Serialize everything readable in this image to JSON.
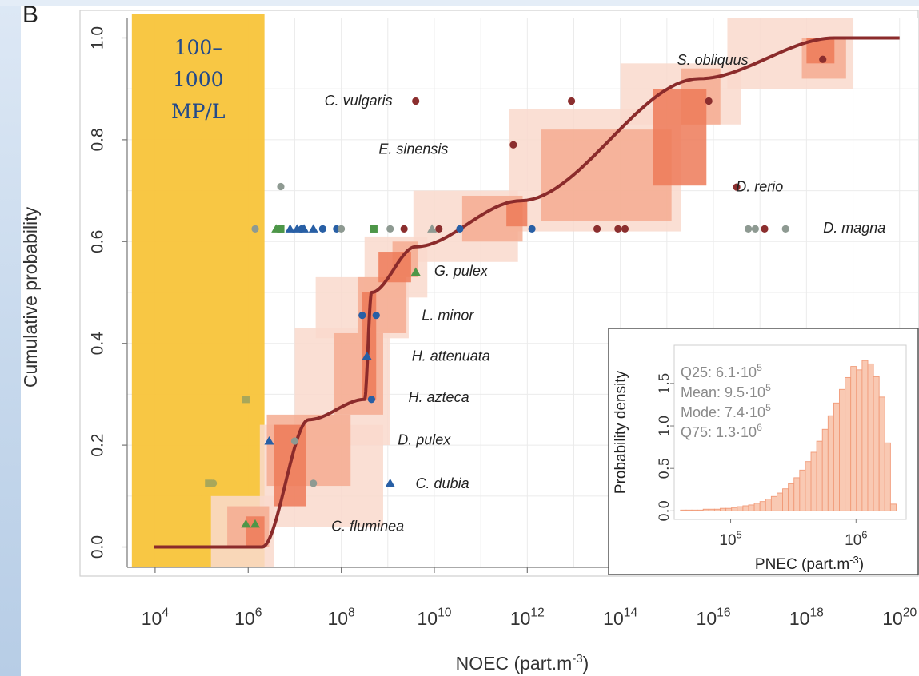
{
  "panel_label": "B",
  "chart_data": {
    "type": "scatter",
    "xlabel": "NOEC (part.m",
    "xlabel_sup": "-3",
    "xlabel_end": ")",
    "ylabel": "Cumulative probability",
    "xscale": "log10",
    "xlim_log10": [
      3.4,
      20.4
    ],
    "ylim": [
      -0.04,
      1.04
    ],
    "x_ticks_log10": [
      4,
      6,
      8,
      10,
      12,
      14,
      16,
      18,
      20
    ],
    "x_tick_labels": [
      "4",
      "6",
      "8",
      "10",
      "12",
      "14",
      "16",
      "18",
      "20"
    ],
    "y_ticks": [
      0.0,
      0.2,
      0.4,
      0.6,
      0.8,
      1.0
    ],
    "y_tick_labels": [
      "0.0",
      "0.2",
      "0.4",
      "0.6",
      "0.8",
      "1.0"
    ],
    "grid": true,
    "highlight_band": {
      "label_lines": [
        "100–",
        "1000",
        "MP/L"
      ],
      "x_range_log10": [
        3.5,
        6.35
      ],
      "color": "#f8c43a"
    },
    "ssd_curve": {
      "color": "#8b2b2b",
      "steps": [
        {
          "x0": 3.98,
          "x1": 6.3,
          "y0": 0.0,
          "y1": 0.0
        },
        {
          "x0": 6.3,
          "x1": 7.3,
          "y0": 0.0,
          "y1": 0.25
        },
        {
          "x0": 7.3,
          "x1": 8.5,
          "y0": 0.25,
          "y1": 0.29
        },
        {
          "x0": 8.5,
          "x1": 8.65,
          "y0": 0.29,
          "y1": 0.5
        },
        {
          "x0": 8.65,
          "x1": 9.6,
          "y0": 0.5,
          "y1": 0.59
        },
        {
          "x0": 9.6,
          "x1": 11.85,
          "y0": 0.59,
          "y1": 0.68
        },
        {
          "x0": 11.85,
          "x1": 15.7,
          "y0": 0.68,
          "y1": 0.92
        },
        {
          "x0": 15.7,
          "x1": 18.6,
          "y0": 0.92,
          "y1": 1.0
        },
        {
          "x0": 18.6,
          "x1": 20.0,
          "y0": 1.0,
          "y1": 1.0
        }
      ]
    },
    "confidence_bands": [
      {
        "level": "outer",
        "color": "#f9d9cd",
        "boxes": [
          [
            5.2,
            6.55,
            -0.04,
            0.1
          ],
          [
            6.25,
            8.9,
            0.04,
            0.24
          ],
          [
            7.0,
            9.05,
            0.2,
            0.43
          ],
          [
            7.45,
            9.45,
            0.41,
            0.53
          ],
          [
            8.5,
            9.85,
            0.49,
            0.61
          ],
          [
            9.55,
            11.8,
            0.56,
            0.7
          ],
          [
            11.6,
            15.3,
            0.62,
            0.86
          ],
          [
            14.0,
            16.6,
            0.83,
            0.95
          ],
          [
            16.3,
            19.0,
            0.9,
            1.04
          ]
        ]
      },
      {
        "level": "middle",
        "color": "#f4ab90",
        "boxes": [
          [
            5.55,
            6.45,
            0.0,
            0.08
          ],
          [
            6.4,
            8.2,
            0.12,
            0.26
          ],
          [
            7.85,
            8.9,
            0.26,
            0.42
          ],
          [
            8.35,
            9.4,
            0.42,
            0.53
          ],
          [
            9.1,
            9.65,
            0.53,
            0.6
          ],
          [
            10.6,
            11.9,
            0.6,
            0.69
          ],
          [
            12.3,
            15.1,
            0.64,
            0.82
          ],
          [
            15.3,
            16.15,
            0.83,
            0.94
          ],
          [
            17.9,
            18.85,
            0.92,
            1.0
          ]
        ]
      },
      {
        "level": "inner",
        "color": "#ed7a58",
        "boxes": [
          [
            5.95,
            6.35,
            0.0,
            0.06
          ],
          [
            6.55,
            7.25,
            0.08,
            0.24
          ],
          [
            8.45,
            8.75,
            0.29,
            0.5
          ],
          [
            8.8,
            9.5,
            0.52,
            0.58
          ],
          [
            11.55,
            12.0,
            0.63,
            0.68
          ],
          [
            14.7,
            15.85,
            0.71,
            0.9
          ],
          [
            18.0,
            18.6,
            0.95,
            1.0
          ]
        ]
      }
    ],
    "species_labels": [
      {
        "text": "S. obliquus",
        "x": 16.75,
        "y": 0.957
      },
      {
        "text": "C. vulgaris",
        "x": 9.1,
        "y": 0.877
      },
      {
        "text": "E. sinensis",
        "x": 10.3,
        "y": 0.782
      },
      {
        "text": "D. rerio",
        "x": 17.5,
        "y": 0.708
      },
      {
        "text": "D. magna",
        "x": 19.7,
        "y": 0.627
      },
      {
        "text": "G. pulex",
        "x": 11.15,
        "y": 0.542
      },
      {
        "text": "L. minor",
        "x": 10.85,
        "y": 0.455
      },
      {
        "text": "H. attenuata",
        "x": 11.2,
        "y": 0.375
      },
      {
        "text": "H. azteca",
        "x": 10.75,
        "y": 0.294
      },
      {
        "text": "D. pulex",
        "x": 10.35,
        "y": 0.21
      },
      {
        "text": "C. dubia",
        "x": 10.75,
        "y": 0.125
      },
      {
        "text": "C. fluminea",
        "x": 9.35,
        "y": 0.041
      }
    ],
    "marker_colors": {
      "darkred": "#8b2e2e",
      "grey": "#8e9a92",
      "blue": "#285fa5",
      "green": "#4d9648",
      "olive": "#a9a75a"
    },
    "points": [
      {
        "x": 9.6,
        "y": 0.876,
        "shape": "circle",
        "color": "darkred"
      },
      {
        "x": 12.95,
        "y": 0.876,
        "shape": "circle",
        "color": "darkred"
      },
      {
        "x": 11.7,
        "y": 0.79,
        "shape": "circle",
        "color": "darkred"
      },
      {
        "x": 15.9,
        "y": 0.876,
        "shape": "circle",
        "color": "darkred"
      },
      {
        "x": 16.5,
        "y": 0.707,
        "shape": "circle",
        "color": "darkred"
      },
      {
        "x": 18.35,
        "y": 0.958,
        "shape": "circle",
        "color": "darkred"
      },
      {
        "x": 6.7,
        "y": 0.708,
        "shape": "circle",
        "color": "grey"
      },
      {
        "x": 6.15,
        "y": 0.625,
        "shape": "circle",
        "color": "grey"
      },
      {
        "x": 6.7,
        "y": 0.625,
        "shape": "square",
        "color": "green"
      },
      {
        "x": 6.6,
        "y": 0.625,
        "shape": "triangle",
        "color": "green"
      },
      {
        "x": 6.9,
        "y": 0.625,
        "shape": "triangle",
        "color": "blue"
      },
      {
        "x": 7.05,
        "y": 0.625,
        "shape": "triangle",
        "color": "blue"
      },
      {
        "x": 7.2,
        "y": 0.625,
        "shape": "triangle",
        "color": "blue"
      },
      {
        "x": 7.4,
        "y": 0.625,
        "shape": "triangle",
        "color": "blue"
      },
      {
        "x": 7.15,
        "y": 0.625,
        "shape": "circle",
        "color": "blue"
      },
      {
        "x": 7.6,
        "y": 0.625,
        "shape": "circle",
        "color": "blue"
      },
      {
        "x": 7.9,
        "y": 0.625,
        "shape": "circle",
        "color": "blue"
      },
      {
        "x": 8.0,
        "y": 0.625,
        "shape": "circle",
        "color": "grey"
      },
      {
        "x": 8.7,
        "y": 0.625,
        "shape": "square",
        "color": "green"
      },
      {
        "x": 9.05,
        "y": 0.625,
        "shape": "circle",
        "color": "grey"
      },
      {
        "x": 9.35,
        "y": 0.625,
        "shape": "circle",
        "color": "darkred"
      },
      {
        "x": 9.95,
        "y": 0.625,
        "shape": "triangle",
        "color": "grey"
      },
      {
        "x": 10.1,
        "y": 0.625,
        "shape": "circle",
        "color": "darkred"
      },
      {
        "x": 10.55,
        "y": 0.625,
        "shape": "circle",
        "color": "blue"
      },
      {
        "x": 12.1,
        "y": 0.625,
        "shape": "circle",
        "color": "blue"
      },
      {
        "x": 13.5,
        "y": 0.625,
        "shape": "circle",
        "color": "darkred"
      },
      {
        "x": 13.95,
        "y": 0.625,
        "shape": "circle",
        "color": "darkred"
      },
      {
        "x": 14.1,
        "y": 0.625,
        "shape": "circle",
        "color": "darkred"
      },
      {
        "x": 16.75,
        "y": 0.625,
        "shape": "circle",
        "color": "grey"
      },
      {
        "x": 16.9,
        "y": 0.625,
        "shape": "circle",
        "color": "grey"
      },
      {
        "x": 17.1,
        "y": 0.625,
        "shape": "circle",
        "color": "darkred"
      },
      {
        "x": 17.55,
        "y": 0.625,
        "shape": "circle",
        "color": "grey"
      },
      {
        "x": 9.6,
        "y": 0.54,
        "shape": "triangle",
        "color": "green"
      },
      {
        "x": 8.45,
        "y": 0.455,
        "shape": "circle",
        "color": "blue"
      },
      {
        "x": 8.75,
        "y": 0.455,
        "shape": "circle",
        "color": "blue"
      },
      {
        "x": 8.55,
        "y": 0.375,
        "shape": "triangle",
        "color": "blue"
      },
      {
        "x": 8.65,
        "y": 0.29,
        "shape": "circle",
        "color": "blue"
      },
      {
        "x": 5.95,
        "y": 0.29,
        "shape": "square",
        "color": "olive"
      },
      {
        "x": 6.45,
        "y": 0.208,
        "shape": "triangle",
        "color": "blue"
      },
      {
        "x": 7.0,
        "y": 0.208,
        "shape": "circle",
        "color": "grey"
      },
      {
        "x": 9.05,
        "y": 0.125,
        "shape": "triangle",
        "color": "blue"
      },
      {
        "x": 7.4,
        "y": 0.125,
        "shape": "circle",
        "color": "grey"
      },
      {
        "x": 5.15,
        "y": 0.125,
        "shape": "square",
        "color": "olive"
      },
      {
        "x": 5.25,
        "y": 0.125,
        "shape": "circle",
        "color": "olive"
      },
      {
        "x": 5.95,
        "y": 0.045,
        "shape": "triangle",
        "color": "green"
      },
      {
        "x": 6.15,
        "y": 0.045,
        "shape": "triangle",
        "color": "green"
      }
    ],
    "inset": {
      "type": "bar",
      "xlabel": "PNEC (part.m",
      "xlabel_sup": "-3",
      "xlabel_end": ")",
      "ylabel": "Probability density",
      "xscale": "log10",
      "xlim_log10": [
        4.55,
        6.4
      ],
      "ylim": [
        -0.1,
        1.95
      ],
      "x_ticks_log10": [
        5,
        6
      ],
      "x_tick_labels": [
        "5",
        "6"
      ],
      "y_ticks": [
        0.0,
        0.5,
        1.0,
        1.5
      ],
      "y_tick_labels": [
        "0.0",
        "0.5",
        "1.0",
        "1.5"
      ],
      "bar_color": "#f9c9b3",
      "bar_edge": "#f19a78",
      "bin_edges_log10": [
        4.6,
        6.32
      ],
      "values": [
        0.01,
        0.01,
        0.01,
        0.01,
        0.02,
        0.02,
        0.02,
        0.03,
        0.03,
        0.04,
        0.05,
        0.06,
        0.07,
        0.09,
        0.11,
        0.14,
        0.17,
        0.21,
        0.26,
        0.32,
        0.39,
        0.48,
        0.58,
        0.69,
        0.82,
        0.96,
        1.12,
        1.27,
        1.43,
        1.57,
        1.7,
        1.66,
        1.77,
        1.73,
        1.58,
        1.34,
        0.8,
        0.08
      ],
      "stats": [
        {
          "label": "Q25: 6.1·10",
          "sup": "5"
        },
        {
          "label": "Mean: 9.5·10",
          "sup": "5"
        },
        {
          "label": "Mode: 7.4·10",
          "sup": "5"
        },
        {
          "label": "Q75: 1.3·10",
          "sup": "6"
        }
      ]
    }
  }
}
